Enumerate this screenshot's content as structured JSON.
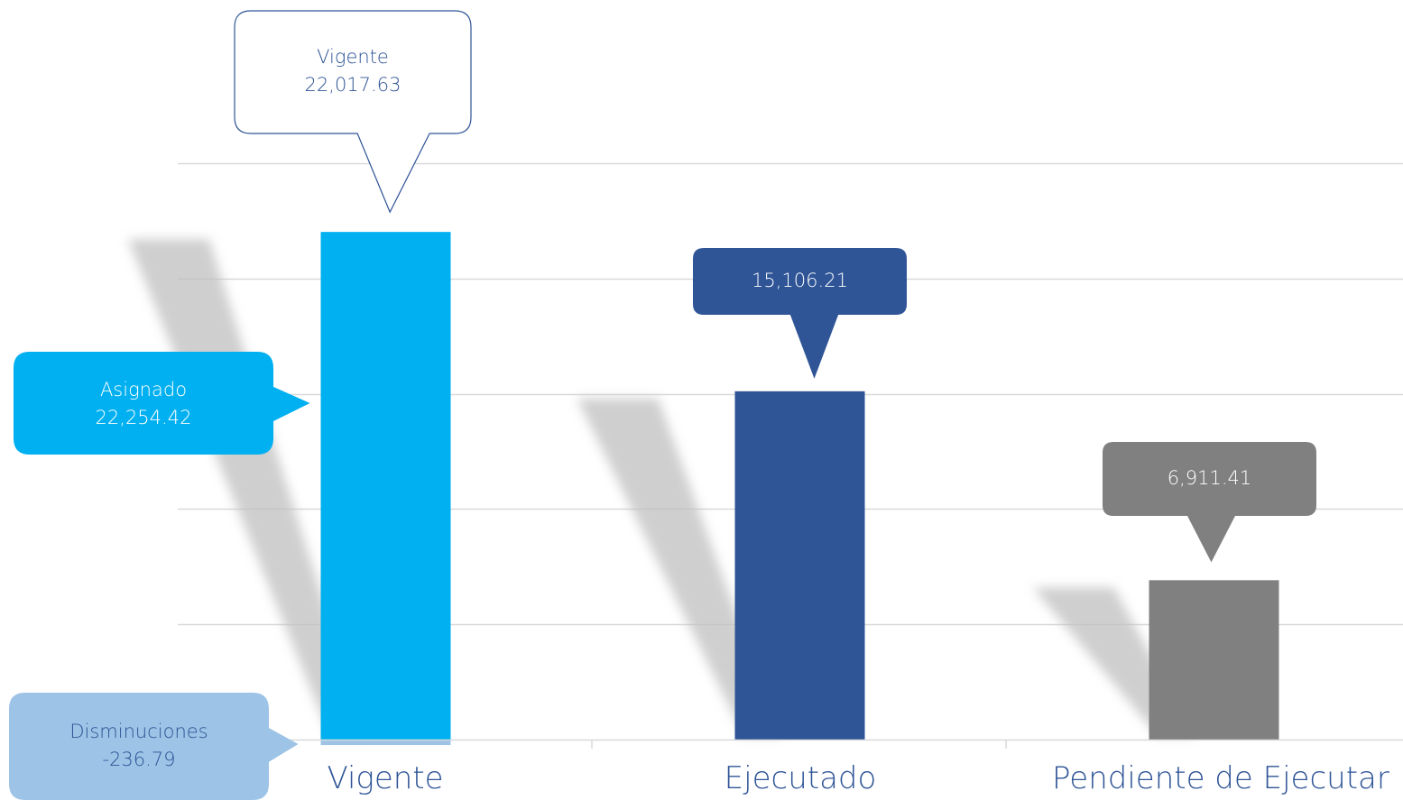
{
  "chart_data": {
    "type": "bar",
    "categories": [
      "Vigente",
      "Ejecutado",
      "Pendiente de Ejecutar"
    ],
    "values": [
      22017.63,
      15106.21,
      6911.41
    ],
    "colors": [
      "#00b0f0",
      "#2f5597",
      "#808080"
    ],
    "ylim": [
      0,
      27500
    ],
    "grid": true,
    "callouts": {
      "vigente": {
        "title": "Vigente",
        "value": "22,017.63"
      },
      "ejecutado": {
        "value": "15,106.21"
      },
      "pendiente": {
        "value": "6,911.41"
      },
      "asignado": {
        "title": "Asignado",
        "value": "22,254.42",
        "amount": 22254.42
      },
      "disminuciones": {
        "title": "Disminuciones",
        "value": "-236.79",
        "amount": -236.79
      }
    }
  },
  "colors": {
    "accent": "#00b0f0",
    "executed": "#2f5597",
    "pending": "#808080",
    "decrease": "#9dc3e6",
    "text": "#2e5496"
  }
}
